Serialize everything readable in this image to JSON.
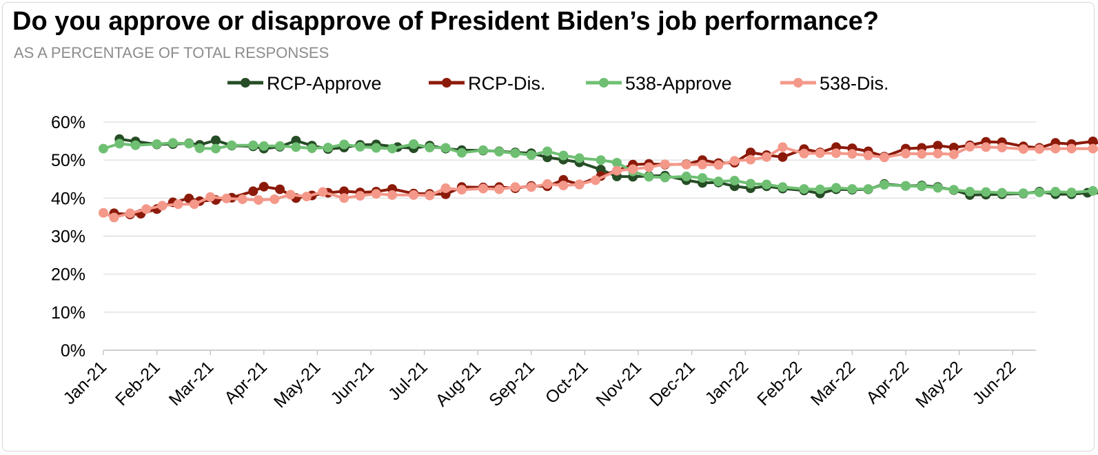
{
  "chart_data": {
    "type": "line",
    "title": "Do you approve or disapprove of President Biden’s job performance?",
    "subtitle": "AS A PERCENTAGE OF TOTAL RESPONSES",
    "xlabel": "",
    "ylabel": "",
    "ylim": [
      0,
      60
    ],
    "yticks": [
      "0%",
      "10%",
      "20%",
      "30%",
      "40%",
      "50%",
      "60%"
    ],
    "xticks": [
      "Jan-21",
      "Feb-21",
      "Mar-21",
      "Apr-21",
      "May-21",
      "Jun-21",
      "Jul-21",
      "Aug-21",
      "Sep-21",
      "Oct-21",
      "Nov-21",
      "Dec-21",
      "Jan-22",
      "Feb-22",
      "Mar-22",
      "Apr-22",
      "May-22",
      "Jun-22"
    ],
    "grid": true,
    "legend_position": "top",
    "series": [
      {
        "name": "RCP-Approve",
        "color": "#264d26",
        "points": [
          [
            0.3,
            55.5
          ],
          [
            0.6,
            54.9
          ],
          [
            1.0,
            54.1
          ],
          [
            1.3,
            54.2
          ],
          [
            1.6,
            54.4
          ],
          [
            1.8,
            54.0
          ],
          [
            2.1,
            55.2
          ],
          [
            2.4,
            53.8
          ],
          [
            2.8,
            53.6
          ],
          [
            3.0,
            53.0
          ],
          [
            3.3,
            53.5
          ],
          [
            3.6,
            55.1
          ],
          [
            3.9,
            53.8
          ],
          [
            4.2,
            52.9
          ],
          [
            4.5,
            53.3
          ],
          [
            4.8,
            54.0
          ],
          [
            5.1,
            54.1
          ],
          [
            5.5,
            53.4
          ],
          [
            5.8,
            53.1
          ],
          [
            6.1,
            53.8
          ],
          [
            6.4,
            53.0
          ],
          [
            6.7,
            52.6
          ],
          [
            7.1,
            52.5
          ],
          [
            7.4,
            52.3
          ],
          [
            7.7,
            52.0
          ],
          [
            8.0,
            51.8
          ],
          [
            8.3,
            50.7
          ],
          [
            8.6,
            50.1
          ],
          [
            8.9,
            49.4
          ],
          [
            9.3,
            47.5
          ],
          [
            9.6,
            45.7
          ],
          [
            9.9,
            45.6
          ],
          [
            10.2,
            45.8
          ],
          [
            10.5,
            45.9
          ],
          [
            10.9,
            44.7
          ],
          [
            11.2,
            44.0
          ],
          [
            11.5,
            44.1
          ],
          [
            11.8,
            43.1
          ],
          [
            12.1,
            42.6
          ],
          [
            12.4,
            43.1
          ],
          [
            12.7,
            42.5
          ],
          [
            13.1,
            42.0
          ],
          [
            13.4,
            41.2
          ],
          [
            13.7,
            42.3
          ],
          [
            14.0,
            42.2
          ],
          [
            14.3,
            42.3
          ],
          [
            14.6,
            43.7
          ],
          [
            15.0,
            43.2
          ],
          [
            15.3,
            43.3
          ],
          [
            15.6,
            42.9
          ],
          [
            15.9,
            42.1
          ],
          [
            16.2,
            40.8
          ],
          [
            16.5,
            40.9
          ],
          [
            16.8,
            41.0
          ],
          [
            17.2,
            41.2
          ],
          [
            17.5,
            41.7
          ],
          [
            17.8,
            41.0
          ],
          [
            18.1,
            41.0
          ],
          [
            18.4,
            41.4
          ],
          [
            19.1,
            41.2
          ],
          [
            20.0,
            40.9
          ],
          [
            20.6,
            41.6
          ],
          [
            21.1,
            41.2
          ],
          [
            21.6,
            40.8
          ],
          [
            22.2,
            39.6
          ],
          [
            22.5,
            39.8
          ],
          [
            22.8,
            39.4
          ],
          [
            23.1,
            38.3
          ]
        ]
      },
      {
        "name": "RCP-Dis.",
        "color": "#8c1a0a",
        "points": [
          [
            0.2,
            36.0
          ],
          [
            0.5,
            35.7
          ],
          [
            0.7,
            35.9
          ],
          [
            1.0,
            37.1
          ],
          [
            1.3,
            38.9
          ],
          [
            1.6,
            39.9
          ],
          [
            1.8,
            39.2
          ],
          [
            2.1,
            39.5
          ],
          [
            2.4,
            40.1
          ],
          [
            2.8,
            41.8
          ],
          [
            3.0,
            43.0
          ],
          [
            3.3,
            42.3
          ],
          [
            3.6,
            40.0
          ],
          [
            3.9,
            40.7
          ],
          [
            4.2,
            41.4
          ],
          [
            4.5,
            41.8
          ],
          [
            4.8,
            41.5
          ],
          [
            5.1,
            41.7
          ],
          [
            5.4,
            42.4
          ],
          [
            5.8,
            41.2
          ],
          [
            6.1,
            41.1
          ],
          [
            6.4,
            41.0
          ],
          [
            6.7,
            42.9
          ],
          [
            7.1,
            42.8
          ],
          [
            7.4,
            42.9
          ],
          [
            7.7,
            42.6
          ],
          [
            8.0,
            43.2
          ],
          [
            8.3,
            43.1
          ],
          [
            8.6,
            44.8
          ],
          [
            8.9,
            43.6
          ],
          [
            9.3,
            45.8
          ],
          [
            9.6,
            47.2
          ],
          [
            9.9,
            48.8
          ],
          [
            10.2,
            49.0
          ],
          [
            10.5,
            48.8
          ],
          [
            10.9,
            48.9
          ],
          [
            11.2,
            50.0
          ],
          [
            11.5,
            49.2
          ],
          [
            11.8,
            49.3
          ],
          [
            12.1,
            52.0
          ],
          [
            12.4,
            51.3
          ],
          [
            12.7,
            50.8
          ],
          [
            13.1,
            52.9
          ],
          [
            13.4,
            52.0
          ],
          [
            13.7,
            53.4
          ],
          [
            14.0,
            53.1
          ],
          [
            14.3,
            52.3
          ],
          [
            14.6,
            50.9
          ],
          [
            15.0,
            53.0
          ],
          [
            15.3,
            53.2
          ],
          [
            15.6,
            53.8
          ],
          [
            15.9,
            53.3
          ],
          [
            16.2,
            53.9
          ],
          [
            16.5,
            54.8
          ],
          [
            16.8,
            54.7
          ],
          [
            17.2,
            53.6
          ],
          [
            17.5,
            53.2
          ],
          [
            17.8,
            54.5
          ],
          [
            18.1,
            54.2
          ],
          [
            18.5,
            54.9
          ],
          [
            19.1,
            52.4
          ],
          [
            20.0,
            53.7
          ],
          [
            20.6,
            53.1
          ],
          [
            21.1,
            55.3
          ],
          [
            21.6,
            54.8
          ],
          [
            22.2,
            54.6
          ],
          [
            22.5,
            54.4
          ],
          [
            22.8,
            56.1
          ],
          [
            23.1,
            57.4
          ]
        ]
      },
      {
        "name": "538-Approve",
        "color": "#6fbf73",
        "points": [
          [
            0.0,
            53.0
          ],
          [
            0.3,
            54.3
          ],
          [
            0.6,
            53.9
          ],
          [
            1.0,
            54.2
          ],
          [
            1.3,
            54.5
          ],
          [
            1.6,
            54.3
          ],
          [
            1.8,
            53.1
          ],
          [
            2.1,
            53.0
          ],
          [
            2.4,
            53.9
          ],
          [
            2.8,
            53.9
          ],
          [
            3.0,
            53.7
          ],
          [
            3.3,
            53.7
          ],
          [
            3.6,
            53.4
          ],
          [
            3.9,
            53.1
          ],
          [
            4.2,
            53.3
          ],
          [
            4.5,
            54.1
          ],
          [
            4.8,
            53.5
          ],
          [
            5.1,
            53.2
          ],
          [
            5.4,
            53.0
          ],
          [
            5.8,
            54.2
          ],
          [
            6.1,
            53.3
          ],
          [
            6.4,
            53.2
          ],
          [
            6.7,
            51.9
          ],
          [
            7.1,
            52.6
          ],
          [
            7.4,
            52.2
          ],
          [
            7.7,
            51.8
          ],
          [
            8.0,
            51.3
          ],
          [
            8.3,
            52.3
          ],
          [
            8.6,
            51.2
          ],
          [
            8.9,
            50.5
          ],
          [
            9.3,
            50.0
          ],
          [
            9.6,
            49.3
          ],
          [
            9.9,
            47.0
          ],
          [
            10.2,
            45.6
          ],
          [
            10.5,
            45.4
          ],
          [
            10.9,
            45.7
          ],
          [
            11.2,
            45.3
          ],
          [
            11.5,
            44.4
          ],
          [
            11.8,
            44.6
          ],
          [
            12.1,
            43.8
          ],
          [
            12.4,
            43.6
          ],
          [
            12.7,
            42.9
          ],
          [
            13.1,
            42.4
          ],
          [
            13.4,
            42.3
          ],
          [
            13.7,
            42.7
          ],
          [
            14.0,
            42.4
          ],
          [
            14.3,
            42.4
          ],
          [
            14.6,
            43.5
          ],
          [
            15.0,
            43.2
          ],
          [
            15.3,
            43.1
          ],
          [
            15.6,
            42.7
          ],
          [
            15.9,
            42.2
          ],
          [
            16.2,
            41.7
          ],
          [
            16.5,
            41.6
          ],
          [
            16.8,
            41.4
          ],
          [
            17.2,
            41.3
          ],
          [
            17.5,
            41.5
          ],
          [
            17.8,
            41.7
          ],
          [
            18.1,
            41.5
          ],
          [
            18.5,
            41.9
          ],
          [
            19.1,
            41.5
          ],
          [
            20.0,
            41.8
          ],
          [
            20.6,
            41.4
          ],
          [
            21.1,
            40.6
          ],
          [
            21.6,
            40.1
          ],
          [
            22.2,
            39.9
          ],
          [
            22.5,
            39.8
          ],
          [
            22.8,
            39.5
          ],
          [
            23.1,
            39.0
          ]
        ]
      },
      {
        "name": "538-Dis.",
        "color": "#f4988a",
        "points": [
          [
            0.0,
            36.1
          ],
          [
            0.2,
            34.9
          ],
          [
            0.5,
            36.0
          ],
          [
            0.8,
            37.1
          ],
          [
            1.1,
            38.0
          ],
          [
            1.4,
            38.4
          ],
          [
            1.7,
            38.4
          ],
          [
            2.0,
            40.3
          ],
          [
            2.3,
            39.9
          ],
          [
            2.6,
            39.7
          ],
          [
            2.9,
            39.5
          ],
          [
            3.2,
            39.7
          ],
          [
            3.5,
            40.9
          ],
          [
            3.8,
            40.4
          ],
          [
            4.1,
            41.6
          ],
          [
            4.5,
            40.0
          ],
          [
            4.8,
            40.6
          ],
          [
            5.1,
            41.1
          ],
          [
            5.4,
            40.8
          ],
          [
            5.8,
            40.8
          ],
          [
            6.1,
            40.7
          ],
          [
            6.4,
            42.6
          ],
          [
            6.7,
            42.2
          ],
          [
            7.1,
            42.5
          ],
          [
            7.4,
            42.3
          ],
          [
            7.7,
            42.9
          ],
          [
            8.0,
            42.9
          ],
          [
            8.3,
            43.7
          ],
          [
            8.6,
            43.3
          ],
          [
            8.9,
            43.6
          ],
          [
            9.2,
            44.7
          ],
          [
            9.6,
            47.2
          ],
          [
            9.9,
            47.6
          ],
          [
            10.2,
            48.1
          ],
          [
            10.5,
            48.9
          ],
          [
            10.9,
            48.8
          ],
          [
            11.2,
            48.8
          ],
          [
            11.5,
            48.7
          ],
          [
            11.8,
            49.8
          ],
          [
            12.1,
            50.1
          ],
          [
            12.4,
            50.8
          ],
          [
            12.7,
            53.4
          ],
          [
            13.1,
            51.7
          ],
          [
            13.4,
            51.8
          ],
          [
            13.7,
            51.8
          ],
          [
            14.0,
            51.6
          ],
          [
            14.3,
            51.2
          ],
          [
            14.6,
            50.7
          ],
          [
            15.0,
            51.7
          ],
          [
            15.3,
            51.6
          ],
          [
            15.6,
            51.7
          ],
          [
            15.9,
            51.5
          ],
          [
            16.2,
            53.5
          ],
          [
            16.5,
            53.4
          ],
          [
            16.8,
            53.3
          ],
          [
            17.2,
            52.9
          ],
          [
            17.5,
            52.9
          ],
          [
            17.8,
            53.0
          ],
          [
            18.1,
            53.0
          ],
          [
            18.5,
            53.0
          ],
          [
            19.1,
            52.3
          ],
          [
            20.0,
            52.8
          ],
          [
            20.6,
            52.8
          ],
          [
            21.1,
            54.6
          ],
          [
            21.6,
            53.7
          ],
          [
            22.2,
            54.2
          ],
          [
            22.5,
            54.5
          ],
          [
            22.8,
            55.3
          ],
          [
            23.1,
            56.2
          ]
        ]
      }
    ]
  }
}
